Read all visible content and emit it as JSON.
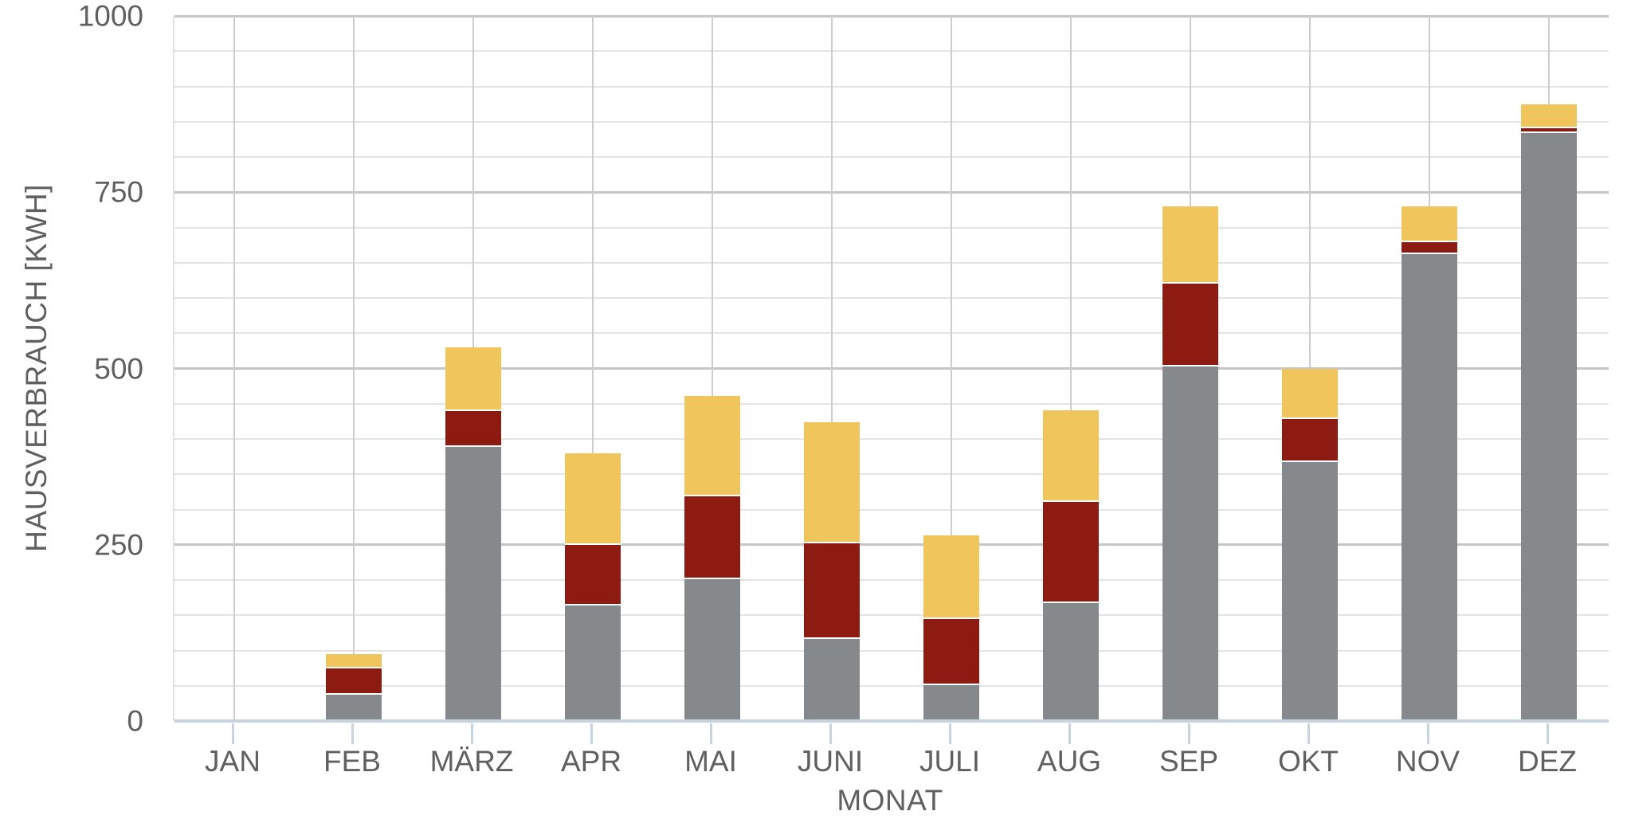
{
  "chart_data": {
    "type": "bar",
    "stacked": true,
    "title": "",
    "xlabel": "MONAT",
    "ylabel": "HAUSVERBRAUCH [KWH]",
    "ylim": [
      0,
      1000
    ],
    "yticks": [
      0,
      250,
      500,
      750,
      1000
    ],
    "grid": {
      "visible": true,
      "minor_step": 50,
      "major_step": 250
    },
    "legend": "none",
    "categories": [
      "JAN",
      "FEB",
      "MÄRZ",
      "APR",
      "MAI",
      "JUNI",
      "JULI",
      "AUG",
      "SEP",
      "OKT",
      "NOV",
      "DEZ"
    ],
    "series": [
      {
        "name": "gray-bottom-segment",
        "color": "#86898C",
        "values": [
          0,
          37,
          389,
          164,
          201,
          116,
          51,
          167,
          503,
          367,
          662,
          834
        ]
      },
      {
        "name": "dark-red-middle-segment",
        "color": "#8E1B11",
        "values": [
          0,
          38,
          51,
          86,
          118,
          136,
          94,
          144,
          117,
          61,
          17,
          7
        ]
      },
      {
        "name": "gold-top-segment",
        "color": "#F0C55C",
        "values": [
          0,
          20,
          90,
          130,
          142,
          172,
          118,
          130,
          110,
          72,
          51,
          34
        ]
      }
    ],
    "stack_totals": [
      0,
      95,
      530,
      380,
      461,
      424,
      263,
      441,
      730,
      500,
      730,
      875
    ]
  },
  "colors": {
    "background": "#FFFFFF",
    "text": "#606060",
    "minor_gridline": "#E4E4E4",
    "major_gridline": "#C6C6C8",
    "month_gridline": "#CDCDCD",
    "axis_line": "#C8D3E0",
    "plot_left_border": "#E2E2E2",
    "segment_separator": "#FFFFFF"
  }
}
